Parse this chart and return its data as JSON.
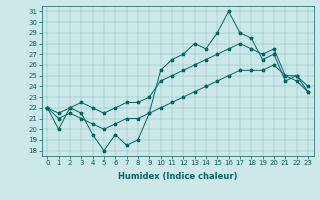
{
  "title": "",
  "xlabel": "Humidex (Indice chaleur)",
  "bg_color": "#cce8e8",
  "line_color": "#006666",
  "grid_color": "#88bbbb",
  "xlim": [
    -0.5,
    23.5
  ],
  "ylim": [
    17.5,
    31.5
  ],
  "hours": [
    0,
    1,
    2,
    3,
    4,
    5,
    6,
    7,
    8,
    9,
    10,
    11,
    12,
    13,
    14,
    15,
    16,
    17,
    18,
    19,
    20,
    21,
    22,
    23
  ],
  "line_jagged": [
    22,
    20,
    22,
    21.5,
    19.5,
    18,
    19.5,
    18.5,
    19,
    21.5,
    25.5,
    26.5,
    27,
    28,
    27.5,
    29,
    31,
    29,
    28.5,
    26.5,
    27,
    24.5,
    25,
    23.5
  ],
  "line_upper": [
    22,
    21.5,
    22,
    22.5,
    22,
    21.5,
    22,
    22.5,
    22.5,
    23,
    24.5,
    25,
    25.5,
    26,
    26.5,
    27,
    27.5,
    28,
    27.5,
    27,
    27.5,
    25,
    25,
    24
  ],
  "line_lower": [
    22,
    21,
    21.5,
    21,
    20.5,
    20,
    20.5,
    21,
    21,
    21.5,
    22,
    22.5,
    23,
    23.5,
    24,
    24.5,
    25,
    25.5,
    25.5,
    25.5,
    26,
    25,
    24.5,
    23.5
  ],
  "ytick_min": 18,
  "ytick_max": 31,
  "tick_fontsize": 5,
  "xlabel_fontsize": 6
}
